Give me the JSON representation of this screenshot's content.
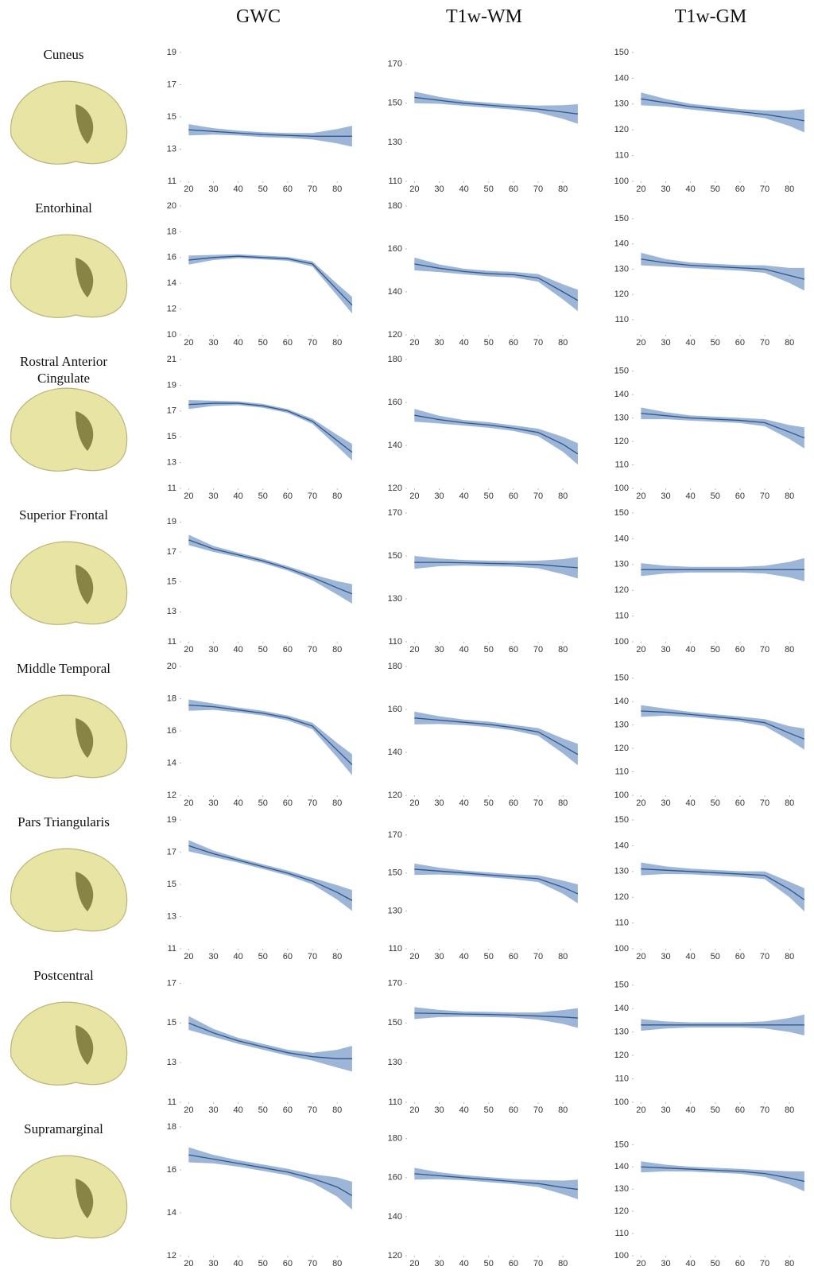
{
  "columns": [
    "GWC",
    "T1w-WM",
    "T1w-GM"
  ],
  "rows": [
    "Cuneus",
    "Entorhinal",
    "Rostral Anterior Cingulate",
    "Superior Frontal",
    "Middle Temporal",
    "Pars Triangularis",
    "Postcentral",
    "Supramarginal"
  ],
  "chart_data": [
    {
      "type": "line",
      "x": [
        20,
        30,
        40,
        50,
        60,
        70,
        80,
        86
      ],
      "values": [
        14.2,
        14.1,
        14.0,
        13.9,
        13.85,
        13.8,
        13.8,
        13.8
      ],
      "errors": [
        0.35,
        0.2,
        0.15,
        0.15,
        0.15,
        0.2,
        0.45,
        0.65
      ],
      "xlim": [
        17,
        87
      ],
      "xticks": [
        20,
        30,
        40,
        50,
        60,
        70,
        80
      ],
      "ylim": [
        11,
        19
      ],
      "yticks": [
        11,
        13,
        15,
        17,
        19
      ],
      "color": "#2f5689",
      "band_color": "#7c9ecb"
    },
    {
      "type": "line",
      "x": [
        20,
        30,
        40,
        50,
        60,
        70,
        80,
        86
      ],
      "values": [
        153,
        151.5,
        150,
        149,
        148,
        147,
        145.5,
        144.5
      ],
      "errors": [
        3,
        1.8,
        1.3,
        1.3,
        1.3,
        1.8,
        3.5,
        5
      ],
      "xlim": [
        17,
        87
      ],
      "xticks": [
        20,
        30,
        40,
        50,
        60,
        70,
        80
      ],
      "ylim": [
        110,
        176
      ],
      "yticks": [
        110,
        130,
        150,
        170
      ],
      "color": "#2f5689",
      "band_color": "#7c9ecb"
    },
    {
      "type": "line",
      "x": [
        20,
        30,
        40,
        50,
        60,
        70,
        80,
        86
      ],
      "values": [
        132,
        130.5,
        129,
        128,
        127,
        126,
        124.5,
        123.5
      ],
      "errors": [
        2.5,
        1.5,
        1.1,
        1.1,
        1.1,
        1.5,
        3,
        4.5
      ],
      "xlim": [
        17,
        87
      ],
      "xticks": [
        20,
        30,
        40,
        50,
        60,
        70,
        80
      ],
      "ylim": [
        100,
        150
      ],
      "yticks": [
        100,
        110,
        120,
        130,
        140,
        150
      ],
      "color": "#2f5689",
      "band_color": "#7c9ecb"
    },
    {
      "type": "line",
      "x": [
        20,
        30,
        40,
        50,
        60,
        70,
        80,
        86
      ],
      "values": [
        15.8,
        16.0,
        16.1,
        16.0,
        15.9,
        15.5,
        13.5,
        12.3
      ],
      "errors": [
        0.35,
        0.2,
        0.15,
        0.15,
        0.15,
        0.2,
        0.45,
        0.65
      ],
      "xlim": [
        17,
        87
      ],
      "xticks": [
        20,
        30,
        40,
        50,
        60,
        70,
        80
      ],
      "ylim": [
        10,
        20
      ],
      "yticks": [
        10,
        12,
        14,
        16,
        18,
        20
      ],
      "color": "#2f5689",
      "band_color": "#7c9ecb"
    },
    {
      "type": "line",
      "x": [
        20,
        30,
        40,
        50,
        60,
        70,
        80,
        86
      ],
      "values": [
        153,
        151,
        149.5,
        148.5,
        148,
        146.5,
        140,
        136
      ],
      "errors": [
        3,
        1.8,
        1.3,
        1.3,
        1.3,
        1.8,
        3.5,
        5
      ],
      "xlim": [
        17,
        87
      ],
      "xticks": [
        20,
        30,
        40,
        50,
        60,
        70,
        80
      ],
      "ylim": [
        120,
        180
      ],
      "yticks": [
        120,
        140,
        160,
        180
      ],
      "color": "#2f5689",
      "band_color": "#7c9ecb"
    },
    {
      "type": "line",
      "x": [
        20,
        30,
        40,
        50,
        60,
        70,
        80,
        86
      ],
      "values": [
        134,
        132.5,
        131.5,
        131,
        130.5,
        130,
        127.5,
        126
      ],
      "errors": [
        2.5,
        1.5,
        1.1,
        1.1,
        1.1,
        1.5,
        3,
        4.5
      ],
      "xlim": [
        17,
        87
      ],
      "xticks": [
        20,
        30,
        40,
        50,
        60,
        70,
        80
      ],
      "ylim": [
        104,
        155
      ],
      "yticks": [
        110,
        120,
        130,
        140,
        150
      ],
      "color": "#2f5689",
      "band_color": "#7c9ecb"
    },
    {
      "type": "line",
      "x": [
        20,
        30,
        40,
        50,
        60,
        70,
        80,
        86
      ],
      "values": [
        17.5,
        17.6,
        17.6,
        17.4,
        17.0,
        16.2,
        14.7,
        13.8
      ],
      "errors": [
        0.35,
        0.2,
        0.15,
        0.15,
        0.15,
        0.2,
        0.45,
        0.65
      ],
      "xlim": [
        17,
        87
      ],
      "xticks": [
        20,
        30,
        40,
        50,
        60,
        70,
        80
      ],
      "ylim": [
        11,
        21
      ],
      "yticks": [
        11,
        13,
        15,
        17,
        19,
        21
      ],
      "color": "#2f5689",
      "band_color": "#7c9ecb"
    },
    {
      "type": "line",
      "x": [
        20,
        30,
        40,
        50,
        60,
        70,
        80,
        86
      ],
      "values": [
        154,
        152,
        150.5,
        149.5,
        148,
        146,
        140.5,
        136
      ],
      "errors": [
        3,
        1.8,
        1.3,
        1.3,
        1.3,
        1.8,
        3.5,
        5
      ],
      "xlim": [
        17,
        87
      ],
      "xticks": [
        20,
        30,
        40,
        50,
        60,
        70,
        80
      ],
      "ylim": [
        120,
        180
      ],
      "yticks": [
        120,
        140,
        160,
        180
      ],
      "color": "#2f5689",
      "band_color": "#7c9ecb"
    },
    {
      "type": "line",
      "x": [
        20,
        30,
        40,
        50,
        60,
        70,
        80,
        86
      ],
      "values": [
        132,
        131,
        130,
        129.5,
        129,
        128,
        124,
        121.5
      ],
      "errors": [
        2.5,
        1.5,
        1.1,
        1.1,
        1.1,
        1.5,
        3,
        4.5
      ],
      "xlim": [
        17,
        87
      ],
      "xticks": [
        20,
        30,
        40,
        50,
        60,
        70,
        80
      ],
      "ylim": [
        100,
        155
      ],
      "yticks": [
        100,
        110,
        120,
        130,
        140,
        150
      ],
      "color": "#2f5689",
      "band_color": "#7c9ecb"
    },
    {
      "type": "line",
      "x": [
        20,
        30,
        40,
        50,
        60,
        70,
        80,
        86
      ],
      "values": [
        17.8,
        17.2,
        16.8,
        16.4,
        15.9,
        15.3,
        14.6,
        14.2
      ],
      "errors": [
        0.35,
        0.2,
        0.15,
        0.15,
        0.15,
        0.2,
        0.45,
        0.65
      ],
      "xlim": [
        17,
        87
      ],
      "xticks": [
        20,
        30,
        40,
        50,
        60,
        70,
        80
      ],
      "ylim": [
        11,
        19.6
      ],
      "yticks": [
        11,
        13,
        15,
        17,
        19
      ],
      "color": "#2f5689",
      "band_color": "#7c9ecb"
    },
    {
      "type": "line",
      "x": [
        20,
        30,
        40,
        50,
        60,
        70,
        80,
        86
      ],
      "values": [
        147,
        147,
        146.8,
        146.5,
        146.3,
        146,
        145,
        144.5
      ],
      "errors": [
        3,
        1.8,
        1.3,
        1.3,
        1.3,
        1.8,
        3.5,
        5
      ],
      "xlim": [
        17,
        87
      ],
      "xticks": [
        20,
        30,
        40,
        50,
        60,
        70,
        80
      ],
      "ylim": [
        110,
        170
      ],
      "yticks": [
        110,
        130,
        150,
        170
      ],
      "color": "#2f5689",
      "band_color": "#7c9ecb"
    },
    {
      "type": "line",
      "x": [
        20,
        30,
        40,
        50,
        60,
        70,
        80,
        86
      ],
      "values": [
        128,
        128,
        128,
        128,
        128,
        128,
        128,
        128
      ],
      "errors": [
        2.5,
        1.5,
        1.1,
        1.1,
        1.1,
        1.5,
        3,
        4.5
      ],
      "xlim": [
        17,
        87
      ],
      "xticks": [
        20,
        30,
        40,
        50,
        60,
        70,
        80
      ],
      "ylim": [
        100,
        150
      ],
      "yticks": [
        100,
        110,
        120,
        130,
        140,
        150
      ],
      "color": "#2f5689",
      "band_color": "#7c9ecb"
    },
    {
      "type": "line",
      "x": [
        20,
        30,
        40,
        50,
        60,
        70,
        80,
        86
      ],
      "values": [
        17.6,
        17.5,
        17.3,
        17.1,
        16.8,
        16.3,
        14.8,
        13.9
      ],
      "errors": [
        0.35,
        0.2,
        0.15,
        0.15,
        0.15,
        0.2,
        0.45,
        0.65
      ],
      "xlim": [
        17,
        87
      ],
      "xticks": [
        20,
        30,
        40,
        50,
        60,
        70,
        80
      ],
      "ylim": [
        12,
        20
      ],
      "yticks": [
        12,
        14,
        16,
        18,
        20
      ],
      "color": "#2f5689",
      "band_color": "#7c9ecb"
    },
    {
      "type": "line",
      "x": [
        20,
        30,
        40,
        50,
        60,
        70,
        80,
        86
      ],
      "values": [
        156,
        155,
        154,
        153,
        151.5,
        149.5,
        143,
        139
      ],
      "errors": [
        3,
        1.8,
        1.3,
        1.3,
        1.3,
        1.8,
        3.5,
        5
      ],
      "xlim": [
        17,
        87
      ],
      "xticks": [
        20,
        30,
        40,
        50,
        60,
        70,
        80
      ],
      "ylim": [
        120,
        180
      ],
      "yticks": [
        120,
        140,
        160,
        180
      ],
      "color": "#2f5689",
      "band_color": "#7c9ecb"
    },
    {
      "type": "line",
      "x": [
        20,
        30,
        40,
        50,
        60,
        70,
        80,
        86
      ],
      "values": [
        136,
        135.5,
        134.5,
        133.5,
        132.5,
        131,
        126.5,
        124
      ],
      "errors": [
        2.5,
        1.5,
        1.1,
        1.1,
        1.1,
        1.5,
        3,
        4.5
      ],
      "xlim": [
        17,
        87
      ],
      "xticks": [
        20,
        30,
        40,
        50,
        60,
        70,
        80
      ],
      "ylim": [
        100,
        155
      ],
      "yticks": [
        100,
        110,
        120,
        130,
        140,
        150
      ],
      "color": "#2f5689",
      "band_color": "#7c9ecb"
    },
    {
      "type": "line",
      "x": [
        20,
        30,
        40,
        50,
        60,
        70,
        80,
        86
      ],
      "values": [
        17.4,
        16.9,
        16.5,
        16.1,
        15.7,
        15.2,
        14.5,
        14.0
      ],
      "errors": [
        0.35,
        0.2,
        0.15,
        0.15,
        0.15,
        0.2,
        0.45,
        0.65
      ],
      "xlim": [
        17,
        87
      ],
      "xticks": [
        20,
        30,
        40,
        50,
        60,
        70,
        80
      ],
      "ylim": [
        11,
        19
      ],
      "yticks": [
        11,
        13,
        15,
        17,
        19
      ],
      "color": "#2f5689",
      "band_color": "#7c9ecb"
    },
    {
      "type": "line",
      "x": [
        20,
        30,
        40,
        50,
        60,
        70,
        80,
        86
      ],
      "values": [
        152,
        151,
        150,
        149,
        148,
        147,
        142.5,
        139
      ],
      "errors": [
        3,
        1.8,
        1.3,
        1.3,
        1.3,
        1.8,
        3.5,
        5
      ],
      "xlim": [
        17,
        87
      ],
      "xticks": [
        20,
        30,
        40,
        50,
        60,
        70,
        80
      ],
      "ylim": [
        110,
        178
      ],
      "yticks": [
        110,
        130,
        150,
        170
      ],
      "color": "#2f5689",
      "band_color": "#7c9ecb"
    },
    {
      "type": "line",
      "x": [
        20,
        30,
        40,
        50,
        60,
        70,
        80,
        86
      ],
      "values": [
        131,
        130.5,
        130,
        129.5,
        129,
        128.5,
        123,
        119
      ],
      "errors": [
        2.5,
        1.5,
        1.1,
        1.1,
        1.1,
        1.5,
        3,
        4.5
      ],
      "xlim": [
        17,
        87
      ],
      "xticks": [
        20,
        30,
        40,
        50,
        60,
        70,
        80
      ],
      "ylim": [
        100,
        150
      ],
      "yticks": [
        100,
        110,
        120,
        130,
        140,
        150
      ],
      "color": "#2f5689",
      "band_color": "#7c9ecb"
    },
    {
      "type": "line",
      "x": [
        20,
        30,
        40,
        50,
        60,
        70,
        80,
        86
      ],
      "values": [
        15.0,
        14.5,
        14.1,
        13.8,
        13.5,
        13.3,
        13.2,
        13.2
      ],
      "errors": [
        0.35,
        0.2,
        0.15,
        0.15,
        0.15,
        0.2,
        0.45,
        0.65
      ],
      "xlim": [
        17,
        87
      ],
      "xticks": [
        20,
        30,
        40,
        50,
        60,
        70,
        80
      ],
      "ylim": [
        11,
        17.5
      ],
      "yticks": [
        11,
        13,
        15,
        17
      ],
      "color": "#2f5689",
      "band_color": "#7c9ecb"
    },
    {
      "type": "line",
      "x": [
        20,
        30,
        40,
        50,
        60,
        70,
        80,
        86
      ],
      "values": [
        155,
        154.8,
        154.5,
        154.3,
        154,
        153.5,
        153,
        152.5
      ],
      "errors": [
        3,
        1.8,
        1.3,
        1.3,
        1.3,
        1.8,
        3.5,
        5
      ],
      "xlim": [
        17,
        87
      ],
      "xticks": [
        20,
        30,
        40,
        50,
        60,
        70,
        80
      ],
      "ylim": [
        110,
        175
      ],
      "yticks": [
        110,
        130,
        150,
        170
      ],
      "color": "#2f5689",
      "band_color": "#7c9ecb"
    },
    {
      "type": "line",
      "x": [
        20,
        30,
        40,
        50,
        60,
        70,
        80,
        86
      ],
      "values": [
        133,
        133,
        133,
        133,
        133,
        133,
        133,
        133
      ],
      "errors": [
        2.5,
        1.5,
        1.1,
        1.1,
        1.1,
        1.5,
        3,
        4.5
      ],
      "xlim": [
        17,
        87
      ],
      "xticks": [
        20,
        30,
        40,
        50,
        60,
        70,
        80
      ],
      "ylim": [
        100,
        155
      ],
      "yticks": [
        100,
        110,
        120,
        130,
        140,
        150
      ],
      "color": "#2f5689",
      "band_color": "#7c9ecb"
    },
    {
      "type": "line",
      "x": [
        20,
        30,
        40,
        50,
        60,
        70,
        80,
        86
      ],
      "values": [
        16.7,
        16.5,
        16.3,
        16.1,
        15.9,
        15.6,
        15.2,
        14.8
      ],
      "errors": [
        0.35,
        0.2,
        0.15,
        0.15,
        0.15,
        0.2,
        0.45,
        0.65
      ],
      "xlim": [
        17,
        87
      ],
      "xticks": [
        20,
        30,
        40,
        50,
        60,
        70,
        80
      ],
      "ylim": [
        12,
        18
      ],
      "yticks": [
        12,
        14,
        16,
        18
      ],
      "color": "#2f5689",
      "band_color": "#7c9ecb"
    },
    {
      "type": "line",
      "x": [
        20,
        30,
        40,
        50,
        60,
        70,
        80,
        86
      ],
      "values": [
        162,
        161,
        160,
        159,
        158,
        157,
        155,
        154
      ],
      "errors": [
        3,
        1.8,
        1.3,
        1.3,
        1.3,
        1.8,
        3.5,
        5
      ],
      "xlim": [
        17,
        87
      ],
      "xticks": [
        20,
        30,
        40,
        50,
        60,
        70,
        80
      ],
      "ylim": [
        120,
        186
      ],
      "yticks": [
        120,
        140,
        160,
        180
      ],
      "color": "#2f5689",
      "band_color": "#7c9ecb"
    },
    {
      "type": "line",
      "x": [
        20,
        30,
        40,
        50,
        60,
        70,
        80,
        86
      ],
      "values": [
        140,
        139.5,
        139,
        138.5,
        138,
        137,
        135,
        133.5
      ],
      "errors": [
        2.5,
        1.5,
        1.1,
        1.1,
        1.1,
        1.5,
        3,
        4.5
      ],
      "xlim": [
        17,
        87
      ],
      "xticks": [
        20,
        30,
        40,
        50,
        60,
        70,
        80
      ],
      "ylim": [
        100,
        158
      ],
      "yticks": [
        100,
        110,
        120,
        130,
        140,
        150
      ],
      "color": "#2f5689",
      "band_color": "#7c9ecb"
    }
  ]
}
